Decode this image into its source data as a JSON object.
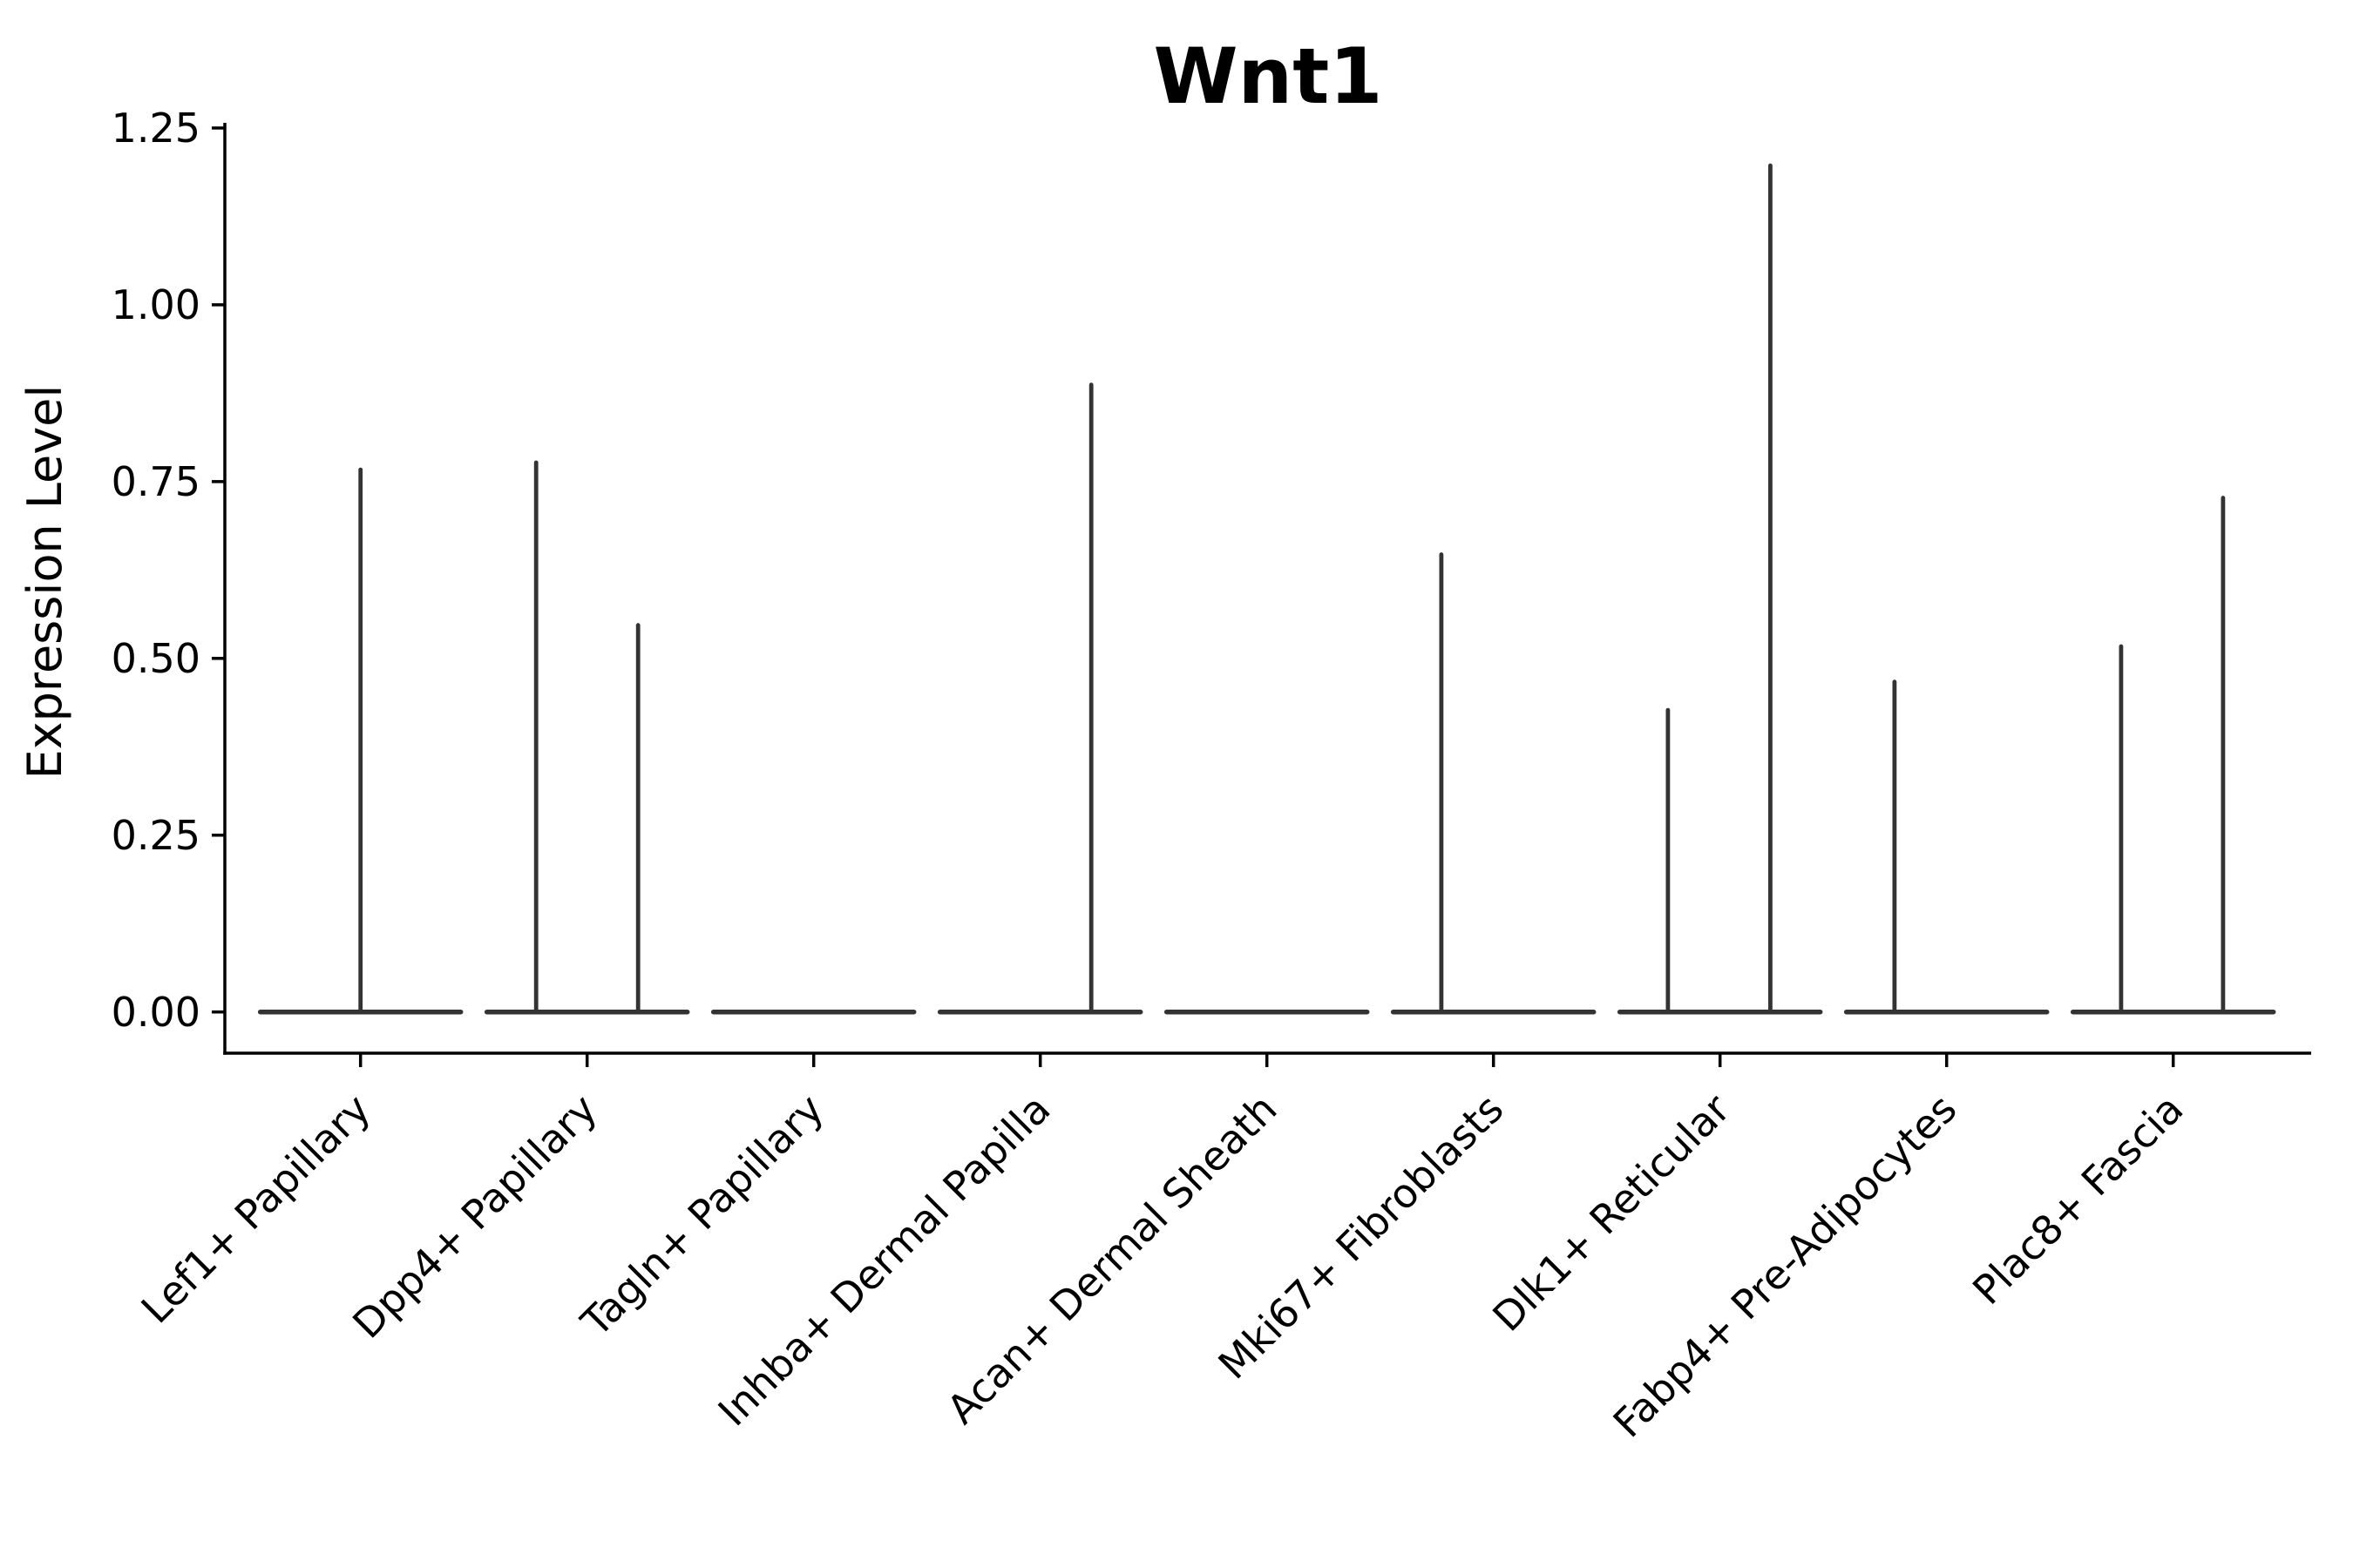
{
  "chart_data": {
    "type": "violin",
    "title": "Wnt1",
    "xlabel": "",
    "ylabel": "Expression Level",
    "ylim": [
      -0.06,
      1.26
    ],
    "yticks": [
      0,
      0.25,
      0.5,
      0.75,
      1.0,
      1.25
    ],
    "ytick_labels": [
      "0.00",
      "0.25",
      "0.50",
      "0.75",
      "1.00",
      "1.25"
    ],
    "grid": false,
    "legend": "none",
    "description": "Each category shows a flat violin baseline at expression 0 with thin vertical spikes marking rare expressing cells; spike offsets are fractions of category spacing, values are expression-level heights of each spike top.",
    "categories": [
      {
        "label": "Lef1+ Papillary",
        "baseline": 0,
        "spikes": [
          {
            "offset": 0.0,
            "value": 0.77
          }
        ]
      },
      {
        "label": "Dpp4+ Papillary",
        "baseline": 0,
        "spikes": [
          {
            "offset": -0.225,
            "value": 0.78
          },
          {
            "offset": 0.225,
            "value": 0.55
          }
        ]
      },
      {
        "label": "Tagln+ Papillary",
        "baseline": 0,
        "spikes": []
      },
      {
        "label": "Inhba+ Dermal Papilla",
        "baseline": 0,
        "spikes": [
          {
            "offset": 0.225,
            "value": 0.89
          }
        ]
      },
      {
        "label": "Acan+ Dermal Sheath",
        "baseline": 0,
        "spikes": []
      },
      {
        "label": "Mki67+ Fibroblasts",
        "baseline": 0,
        "spikes": [
          {
            "offset": -0.23,
            "value": 0.65
          }
        ]
      },
      {
        "label": "Dlk1+ Reticular",
        "baseline": 0,
        "spikes": [
          {
            "offset": -0.23,
            "value": 0.43
          },
          {
            "offset": 0.222,
            "value": 1.2
          }
        ]
      },
      {
        "label": "Fabp4+ Pre-Adipocytes",
        "baseline": 0,
        "spikes": [
          {
            "offset": -0.23,
            "value": 0.47
          }
        ]
      },
      {
        "label": "Plac8+ Fascia",
        "baseline": 0,
        "spikes": [
          {
            "offset": -0.23,
            "value": 0.52
          },
          {
            "offset": 0.22,
            "value": 0.73
          }
        ]
      }
    ]
  },
  "style": {
    "background": "#ffffff",
    "axis_color": "#000000",
    "violin_color": "#333333",
    "text_color": "#000000"
  }
}
